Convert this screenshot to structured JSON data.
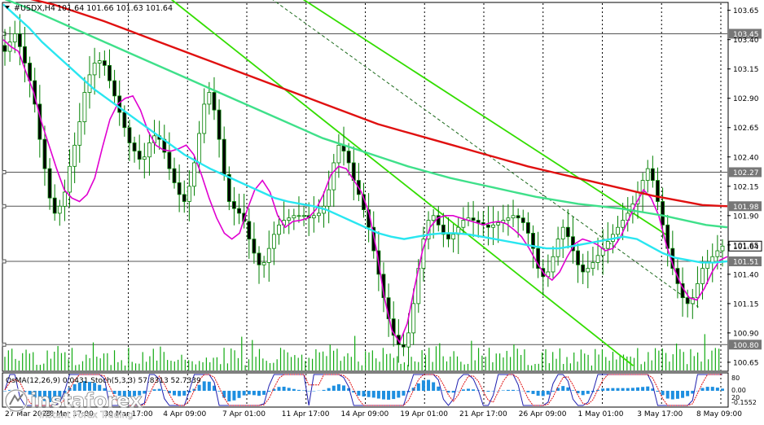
{
  "header": {
    "symbol_label": "#USDX,H4",
    "ohlc_label": "101.64 101.66 101.63 101.64"
  },
  "indicator_label": "OsMA(12,26,9) 0.0431 Stoch(5,3,3) 57.8313 52.7339",
  "indicator_scale": [
    "80",
    "0.00",
    "20",
    "-0.1552"
  ],
  "logo": {
    "brand": "instaforex",
    "tagline": "Instant Forex Trading"
  },
  "colors": {
    "up_candle": "#008000",
    "down_candle": "#008000",
    "ema_fast": "#e000d0",
    "ema_mid": "#29e6f0",
    "ema_slow_green": "#3fe08a",
    "ema_slow_red": "#e01010",
    "channel": "#33dd00",
    "grid": "#000000",
    "volume": "#11aa11",
    "osma_hist": "#1e8fe0",
    "stoch_main": "#2020b0",
    "stoch_signal": "#e01010"
  },
  "chart_data": {
    "type": "candlestick",
    "ylim": [
      100.58,
      103.71
    ],
    "price_ticks": [
      "103.65",
      "103.40",
      "103.15",
      "102.90",
      "102.65",
      "102.40",
      "102.15",
      "101.90",
      "101.65",
      "101.40",
      "101.15",
      "100.90",
      "100.65"
    ],
    "time_labels": [
      "27 Mar 2023",
      "28 Mar 17:00",
      "30 Mar 17:00",
      "4 Apr 09:00",
      "7 Apr 01:00",
      "11 Apr 17:00",
      "14 Apr 09:00",
      "19 Apr 01:00",
      "21 Apr 17:00",
      "26 Apr 09:00",
      "1 May 01:00",
      "3 May 17:00",
      "8 May 09:00"
    ],
    "level_lines": [
      {
        "label": "103.45",
        "value": 103.45,
        "style": "solid"
      },
      {
        "label": "102.27",
        "value": 102.27,
        "style": "solid"
      },
      {
        "label": "101.98",
        "value": 101.98,
        "style": "solid"
      },
      {
        "label": "101.51",
        "value": 101.51,
        "style": "solid"
      },
      {
        "label": "100.80",
        "value": 100.8,
        "style": "solid"
      }
    ],
    "current_price": {
      "label": "101.64",
      "value": 101.64
    },
    "close": [
      103.3,
      103.38,
      103.45,
      103.34,
      103.2,
      103.05,
      102.85,
      102.55,
      102.3,
      102.05,
      101.92,
      101.98,
      102.1,
      102.32,
      102.5,
      102.7,
      102.95,
      103.1,
      103.2,
      103.22,
      103.18,
      103.05,
      102.92,
      102.78,
      102.65,
      102.52,
      102.45,
      102.38,
      102.4,
      102.52,
      102.58,
      102.55,
      102.44,
      102.3,
      102.18,
      102.08,
      102.02,
      102.15,
      102.35,
      102.6,
      102.85,
      102.95,
      102.8,
      102.55,
      102.25,
      102.02,
      101.96,
      101.92,
      101.85,
      101.7,
      101.58,
      101.48,
      101.5,
      101.62,
      101.74,
      101.82,
      101.86,
      101.88,
      101.9,
      101.9,
      101.9,
      101.88,
      101.9,
      101.92,
      101.98,
      102.12,
      102.35,
      102.5,
      102.45,
      102.35,
      102.2,
      102.08,
      101.95,
      101.8,
      101.6,
      101.4,
      101.2,
      101.02,
      100.88,
      100.8,
      100.78,
      100.9,
      101.15,
      101.45,
      101.7,
      101.86,
      101.9,
      101.82,
      101.74,
      101.7,
      101.74,
      101.8,
      101.86,
      101.88,
      101.86,
      101.84,
      101.82,
      101.8,
      101.82,
      101.84,
      101.86,
      101.88,
      101.9,
      101.88,
      101.84,
      101.75,
      101.62,
      101.45,
      101.38,
      101.42,
      101.55,
      101.7,
      101.8,
      101.72,
      101.6,
      101.48,
      101.42,
      101.45,
      101.5,
      101.56,
      101.62,
      101.68,
      101.74,
      101.8,
      101.86,
      101.92,
      102.0,
      102.1,
      102.2,
      102.3,
      102.2,
      102.02,
      101.82,
      101.62,
      101.45,
      101.32,
      101.2,
      101.15,
      101.2,
      101.32,
      101.45,
      101.5,
      101.55,
      101.6,
      101.64
    ],
    "series": [
      {
        "name": "ema_fast",
        "values": [
          103.4,
          103.34,
          103.3,
          103.12,
          102.95,
          102.7,
          102.5,
          102.3,
          102.12,
          102.05,
          102.02,
          102.08,
          102.22,
          102.48,
          102.72,
          102.85,
          102.9,
          102.92,
          102.8,
          102.62,
          102.5,
          102.46,
          102.45,
          102.47,
          102.5,
          102.42,
          102.25,
          102.05,
          101.88,
          101.75,
          101.7,
          101.75,
          101.95,
          102.12,
          102.2,
          102.1,
          101.9,
          101.8,
          101.85,
          101.86,
          101.88,
          101.95,
          102.08,
          102.25,
          102.32,
          102.3,
          102.2,
          102.1,
          101.92,
          101.6,
          101.2,
          100.92,
          100.82,
          100.98,
          101.3,
          101.6,
          101.8,
          101.88,
          101.9,
          101.9,
          101.88,
          101.86,
          101.84,
          101.82,
          101.84,
          101.85,
          101.83,
          101.78,
          101.72,
          101.62,
          101.5,
          101.4,
          101.35,
          101.42,
          101.55,
          101.66,
          101.7,
          101.68,
          101.65,
          101.6,
          101.62,
          101.72,
          101.86,
          102.0,
          102.12,
          102.05,
          101.9,
          101.65,
          101.45,
          101.3,
          101.2,
          101.18,
          101.28,
          101.42,
          101.52,
          101.55
        ]
      },
      {
        "name": "ema_mid",
        "values": [
          103.7,
          103.6,
          103.5,
          103.38,
          103.28,
          103.18,
          103.08,
          102.98,
          102.9,
          102.82,
          102.74,
          102.66,
          102.58,
          102.5,
          102.42,
          102.36,
          102.3,
          102.25,
          102.2,
          102.15,
          102.1,
          102.05,
          102.02,
          102.0,
          101.98,
          101.95,
          101.9,
          101.85,
          101.8,
          101.75,
          101.72,
          101.7,
          101.72,
          101.74,
          101.75,
          101.75,
          101.74,
          101.72,
          101.7,
          101.68,
          101.66,
          101.64,
          101.62,
          101.62,
          101.64,
          101.66,
          101.68,
          101.7,
          101.72,
          101.7,
          101.64,
          101.58,
          101.54,
          101.52,
          101.5,
          101.5,
          101.51
        ]
      },
      {
        "name": "ema_slow_green",
        "values": [
          103.75,
          103.68,
          103.6,
          103.52,
          103.44,
          103.36,
          103.28,
          103.2,
          103.12,
          103.04,
          102.96,
          102.88,
          102.8,
          102.72,
          102.64,
          102.56,
          102.5,
          102.44,
          102.38,
          102.32,
          102.27,
          102.22,
          102.18,
          102.14,
          102.1,
          102.06,
          102.03,
          102.0,
          101.98,
          101.96,
          101.93,
          101.9,
          101.86,
          101.82,
          101.8
        ]
      },
      {
        "name": "ema_slow_red",
        "values": [
          103.8,
          103.75,
          103.7,
          103.63,
          103.56,
          103.48,
          103.4,
          103.32,
          103.24,
          103.16,
          103.08,
          103.0,
          102.92,
          102.84,
          102.76,
          102.68,
          102.62,
          102.56,
          102.5,
          102.44,
          102.38,
          102.32,
          102.27,
          102.22,
          102.17,
          102.12,
          102.07,
          102.03,
          101.99,
          101.98
        ]
      }
    ],
    "channels": [
      {
        "name": "upper",
        "from": [
          0.3,
          104.2
        ],
        "to": [
          0.92,
          101.72
        ]
      },
      {
        "name": "lower",
        "from": [
          0.2,
          103.9
        ],
        "to": [
          0.87,
          100.62
        ]
      },
      {
        "name": "dashed_mid",
        "from": [
          0.37,
          103.75
        ],
        "to": [
          0.96,
          101.12
        ]
      }
    ]
  }
}
